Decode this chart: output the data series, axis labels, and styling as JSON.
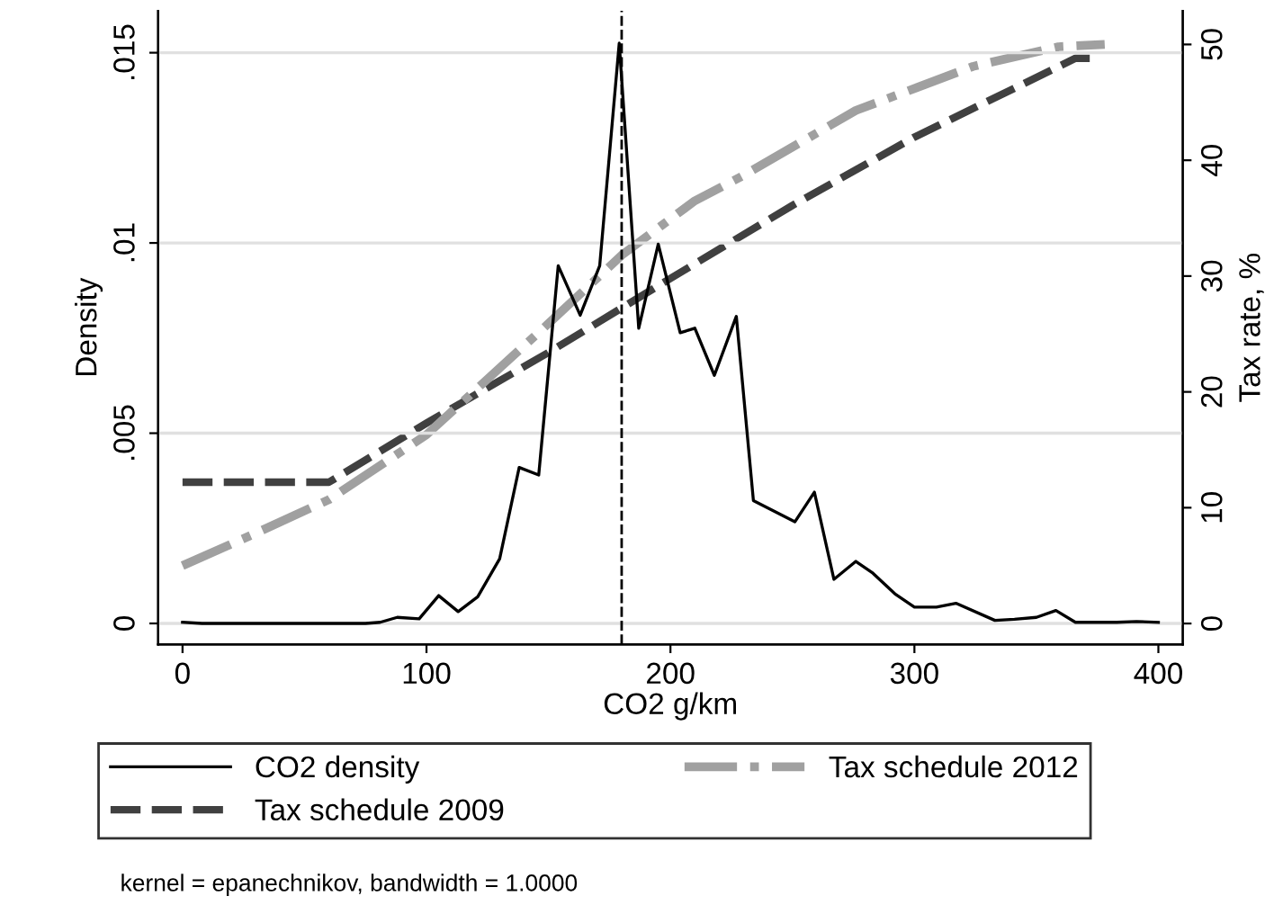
{
  "chart_data": {
    "type": "line",
    "xlabel": "CO2 g/km",
    "ylabel": "Density",
    "y2label": "Tax rate, %",
    "xlim": [
      -10,
      410
    ],
    "xticks": [
      0,
      100,
      200,
      300,
      400
    ],
    "ylim": [
      -0.00055,
      0.0161
    ],
    "yticks": [
      {
        "value": 0,
        "label": "0"
      },
      {
        "value": 0.005,
        "label": ".005"
      },
      {
        "value": 0.01,
        "label": ".01"
      },
      {
        "value": 0.015,
        "label": ".015"
      }
    ],
    "y2lim": [
      -1.8,
      52.9
    ],
    "y2ticks": [
      0,
      10,
      20,
      30,
      40,
      50
    ],
    "grid": "y",
    "legend": "bottom",
    "series": [
      {
        "name": "CO2 density",
        "color": "#000000",
        "line_style": "solid",
        "x": [
          0,
          8,
          17,
          25,
          33,
          42,
          50,
          58,
          67,
          75,
          81,
          88,
          97,
          105,
          113,
          121,
          130,
          138,
          146,
          154,
          163,
          171,
          179,
          187,
          195,
          204,
          210,
          218,
          227,
          234,
          251,
          259,
          267,
          276,
          283,
          292,
          300,
          309,
          317,
          333,
          341,
          350,
          358,
          366,
          383,
          391,
          400
        ],
        "values": [
          3e-05,
          0,
          0,
          0,
          0,
          0,
          0,
          0,
          0,
          0,
          3e-05,
          0.00016,
          0.00012,
          0.00073,
          0.00031,
          0.0007,
          0.0017,
          0.0041,
          0.0039,
          0.0094,
          0.0081,
          0.0094,
          0.01525,
          0.00776,
          0.00997,
          0.00764,
          0.00776,
          0.00652,
          0.00807,
          0.00323,
          0.00267,
          0.00345,
          0.00116,
          0.00163,
          0.00132,
          0.00078,
          0.00043,
          0.00043,
          0.00053,
          8e-05,
          0.00011,
          0.00016,
          0.00034,
          3e-05,
          3e-05,
          5e-05,
          3e-05
        ]
      },
      {
        "name": "Tax schedule 2009",
        "color": "#404040",
        "line_style": "dashed",
        "axis": "y2",
        "x": [
          0,
          60,
          100,
          150,
          200,
          250,
          300,
          366,
          375
        ],
        "values": [
          12.2,
          12.2,
          17.3,
          23.4,
          29.8,
          36.1,
          42,
          48.8,
          48.8
        ]
      },
      {
        "name": "Tax schedule 2012",
        "color": "#a0a0a0",
        "line_style": "dashdot",
        "axis": "y2",
        "x": [
          0,
          30,
          60,
          100,
          150,
          180,
          210,
          230,
          276,
          324,
          359,
          378
        ],
        "values": [
          5,
          7.8,
          10.7,
          16.3,
          25.9,
          31.8,
          36.5,
          38.7,
          44.3,
          48.1,
          49.8,
          50
        ]
      }
    ],
    "ref_lines": [
      {
        "axis": "x",
        "value": 180,
        "color": "#000000",
        "line_style": "dashed"
      }
    ],
    "annotations": [
      "kernel = epanechnikov, bandwidth = 1.0000"
    ]
  }
}
